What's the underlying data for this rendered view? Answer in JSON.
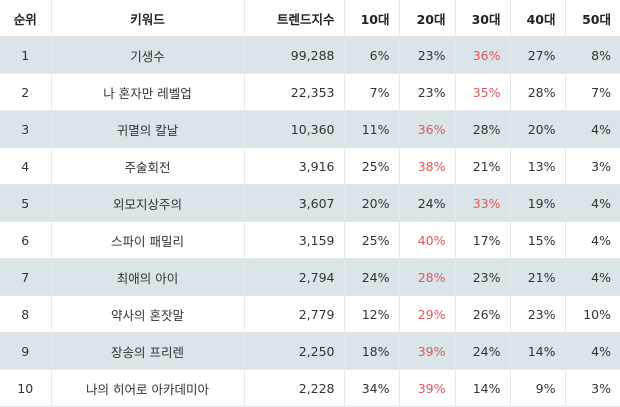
{
  "headers": [
    "순위",
    "키워드",
    "트렌드지수",
    "10대",
    "20대",
    "30대",
    "40대",
    "50대"
  ],
  "highlight_color": "#e0575b",
  "rows": [
    {
      "rank": "1",
      "keyword": "기생수",
      "index": "99,288",
      "ages": [
        "6%",
        "23%",
        "36%",
        "27%",
        "8%"
      ],
      "hot": 2
    },
    {
      "rank": "2",
      "keyword": "나 혼자만 레벨업",
      "index": "22,353",
      "ages": [
        "7%",
        "23%",
        "35%",
        "28%",
        "7%"
      ],
      "hot": 2
    },
    {
      "rank": "3",
      "keyword": "귀멸의 칼날",
      "index": "10,360",
      "ages": [
        "11%",
        "36%",
        "28%",
        "20%",
        "4%"
      ],
      "hot": 1
    },
    {
      "rank": "4",
      "keyword": "주술회전",
      "index": "3,916",
      "ages": [
        "25%",
        "38%",
        "21%",
        "13%",
        "3%"
      ],
      "hot": 1
    },
    {
      "rank": "5",
      "keyword": "외모지상주의",
      "index": "3,607",
      "ages": [
        "20%",
        "24%",
        "33%",
        "19%",
        "4%"
      ],
      "hot": 2
    },
    {
      "rank": "6",
      "keyword": "스파이 패밀리",
      "index": "3,159",
      "ages": [
        "25%",
        "40%",
        "17%",
        "15%",
        "4%"
      ],
      "hot": 1
    },
    {
      "rank": "7",
      "keyword": "최애의 아이",
      "index": "2,794",
      "ages": [
        "24%",
        "28%",
        "23%",
        "21%",
        "4%"
      ],
      "hot": 1
    },
    {
      "rank": "8",
      "keyword": "약사의 혼잣말",
      "index": "2,779",
      "ages": [
        "12%",
        "29%",
        "26%",
        "23%",
        "10%"
      ],
      "hot": 1
    },
    {
      "rank": "9",
      "keyword": "장송의 프리렌",
      "index": "2,250",
      "ages": [
        "18%",
        "39%",
        "24%",
        "14%",
        "4%"
      ],
      "hot": 1
    },
    {
      "rank": "10",
      "keyword": "나의 히어로 아카데미아",
      "index": "2,228",
      "ages": [
        "34%",
        "39%",
        "14%",
        "9%",
        "3%"
      ],
      "hot": 1
    }
  ]
}
